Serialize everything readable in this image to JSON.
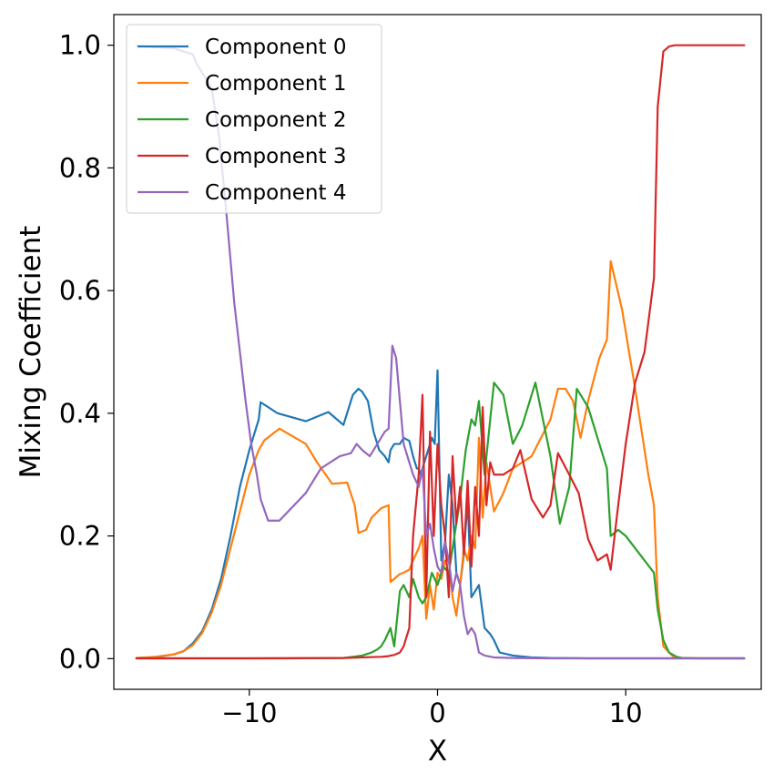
{
  "chart_data": {
    "type": "line",
    "xlabel": "X",
    "ylabel": "Mixing Coefficient",
    "xlim": [
      -17.2,
      17.2
    ],
    "ylim": [
      -0.05,
      1.05
    ],
    "xticks": [
      -10,
      0,
      10
    ],
    "yticks": [
      0.0,
      0.2,
      0.4,
      0.6,
      0.8,
      1.0
    ],
    "xtick_labels": [
      "−10",
      "0",
      "10"
    ],
    "ytick_labels": [
      "0.0",
      "0.2",
      "0.4",
      "0.6",
      "0.8",
      "1.0"
    ],
    "grid": false,
    "legend_position": "top-left",
    "series": [
      {
        "name": "Component 0",
        "color": "#1f77b4",
        "x": [
          -16,
          -15,
          -14,
          -13.5,
          -13,
          -12.5,
          -12,
          -11.5,
          -11,
          -10.5,
          -10,
          -9.5,
          -9.4,
          -8.5,
          -7,
          -5.8,
          -5,
          -4.5,
          -4.2,
          -4,
          -3.7,
          -3.4,
          -3.1,
          -2.8,
          -2.6,
          -2.5,
          -2.3,
          -2.0,
          -1.8,
          -1.5,
          -1.3,
          -1.1,
          -1.0,
          -0.9,
          -0.7,
          -0.5,
          -0.3,
          -0.15,
          0,
          0.2,
          0.4,
          0.6,
          0.8,
          1.0,
          1.2,
          1.4,
          1.6,
          1.8,
          2.0,
          2.2,
          2.5,
          2.8,
          3.0,
          3.3,
          4.0,
          5.0,
          6,
          8,
          10,
          12,
          14,
          16.3
        ],
        "y": [
          0.001,
          0.002,
          0.007,
          0.012,
          0.025,
          0.045,
          0.08,
          0.13,
          0.2,
          0.28,
          0.34,
          0.39,
          0.418,
          0.4,
          0.387,
          0.402,
          0.381,
          0.43,
          0.44,
          0.435,
          0.42,
          0.37,
          0.34,
          0.33,
          0.32,
          0.34,
          0.35,
          0.35,
          0.36,
          0.355,
          0.33,
          0.31,
          0.31,
          0.3,
          0.32,
          0.34,
          0.36,
          0.35,
          0.47,
          0.16,
          0.19,
          0.3,
          0.25,
          0.14,
          0.12,
          0.17,
          0.26,
          0.1,
          0.11,
          0.12,
          0.05,
          0.04,
          0.03,
          0.01,
          0.005,
          0.002,
          0.001,
          0.0005,
          0.0005,
          0.0005,
          0.0005,
          0.0005
        ]
      },
      {
        "name": "Component 1",
        "color": "#ff7f0e",
        "x": [
          -16,
          -15,
          -14,
          -13.5,
          -13,
          -12.5,
          -12,
          -11.5,
          -11,
          -10.5,
          -10,
          -9.5,
          -9.2,
          -8.4,
          -7,
          -6.4,
          -5.6,
          -4.8,
          -4.4,
          -4.2,
          -3.8,
          -3.5,
          -3.0,
          -2.6,
          -2.5,
          -2.3,
          -2.0,
          -1.8,
          -1.5,
          -1.3,
          -1.0,
          -0.8,
          -0.6,
          -0.4,
          -0.2,
          0,
          0.2,
          0.4,
          0.6,
          0.8,
          1.0,
          1.2,
          1.4,
          1.6,
          1.8,
          2.0,
          2.2,
          2.4,
          2.6,
          3.0,
          3.5,
          4.0,
          5.0,
          5.5,
          6.0,
          6.4,
          6.8,
          7.2,
          7.6,
          8.0,
          8.6,
          9.0,
          9.2,
          9.8,
          10.5,
          11.2,
          11.5,
          11.7,
          12.0,
          12.5,
          13,
          14,
          16.3
        ],
        "y": [
          0.001,
          0.003,
          0.007,
          0.012,
          0.022,
          0.042,
          0.075,
          0.12,
          0.18,
          0.24,
          0.3,
          0.34,
          0.356,
          0.375,
          0.35,
          0.32,
          0.285,
          0.287,
          0.25,
          0.205,
          0.21,
          0.23,
          0.245,
          0.25,
          0.125,
          0.13,
          0.138,
          0.14,
          0.145,
          0.16,
          0.18,
          0.2,
          0.065,
          0.12,
          0.08,
          0.14,
          0.13,
          0.16,
          0.16,
          0.1,
          0.07,
          0.12,
          0.18,
          0.16,
          0.2,
          0.18,
          0.36,
          0.23,
          0.32,
          0.24,
          0.27,
          0.31,
          0.33,
          0.36,
          0.39,
          0.44,
          0.44,
          0.42,
          0.36,
          0.42,
          0.49,
          0.52,
          0.648,
          0.57,
          0.44,
          0.3,
          0.25,
          0.1,
          0.02,
          0.004,
          0.001,
          0.0005,
          0.0005
        ]
      },
      {
        "name": "Component 2",
        "color": "#2ca02c",
        "x": [
          -16,
          -12,
          -8,
          -5,
          -4.5,
          -4,
          -3.5,
          -3.2,
          -3.0,
          -2.8,
          -2.5,
          -2.3,
          -2.0,
          -1.8,
          -1.5,
          -1.3,
          -1.0,
          -0.8,
          -0.6,
          -0.3,
          0,
          0.3,
          0.6,
          0.9,
          1.2,
          1.5,
          1.8,
          2.0,
          2.2,
          2.5,
          3.0,
          3.5,
          4.0,
          4.5,
          5.2,
          6.0,
          6.5,
          7.0,
          7.4,
          8.0,
          8.5,
          9.0,
          9.2,
          9.6,
          10.0,
          10.5,
          11,
          11.5,
          11.7,
          12.0,
          12.3,
          12.7,
          13,
          14,
          16.3
        ],
        "y": [
          0.0005,
          0.0005,
          0.0005,
          0.001,
          0.003,
          0.005,
          0.01,
          0.015,
          0.02,
          0.03,
          0.05,
          0.02,
          0.11,
          0.12,
          0.1,
          0.13,
          0.1,
          0.09,
          0.1,
          0.14,
          0.12,
          0.15,
          0.14,
          0.2,
          0.26,
          0.34,
          0.39,
          0.38,
          0.42,
          0.3,
          0.45,
          0.43,
          0.35,
          0.38,
          0.45,
          0.33,
          0.22,
          0.28,
          0.44,
          0.41,
          0.36,
          0.31,
          0.2,
          0.21,
          0.2,
          0.18,
          0.16,
          0.14,
          0.08,
          0.03,
          0.01,
          0.003,
          0.001,
          0.0005,
          0.0005
        ]
      },
      {
        "name": "Component 3",
        "color": "#d62728",
        "x": [
          -16,
          -10,
          -5,
          -3,
          -2.6,
          -2.5,
          -2.3,
          -2.0,
          -1.8,
          -1.5,
          -1.3,
          -1.0,
          -0.8,
          -0.6,
          -0.4,
          -0.2,
          0,
          0.2,
          0.4,
          0.6,
          0.8,
          1.0,
          1.2,
          1.4,
          1.6,
          1.8,
          2.0,
          2.2,
          2.4,
          2.6,
          2.8,
          3.0,
          3.5,
          4.0,
          4.4,
          5.0,
          5.6,
          6.0,
          6.4,
          7.0,
          7.5,
          8.0,
          8.5,
          9.0,
          9.2,
          9.6,
          10.0,
          10.5,
          11.0,
          11.5,
          11.7,
          12.0,
          12.3,
          12.6,
          13,
          14,
          16.3
        ],
        "y": [
          0.0005,
          0.0005,
          0.001,
          0.003,
          0.004,
          0.005,
          0.006,
          0.01,
          0.02,
          0.05,
          0.2,
          0.3,
          0.43,
          0.1,
          0.37,
          0.2,
          0.35,
          0.25,
          0.2,
          0.1,
          0.33,
          0.22,
          0.28,
          0.17,
          0.29,
          0.15,
          0.28,
          0.2,
          0.41,
          0.25,
          0.32,
          0.3,
          0.3,
          0.31,
          0.34,
          0.26,
          0.23,
          0.25,
          0.335,
          0.3,
          0.27,
          0.195,
          0.16,
          0.17,
          0.145,
          0.25,
          0.35,
          0.45,
          0.5,
          0.62,
          0.9,
          0.99,
          0.998,
          1.0,
          1.0,
          1.0,
          1.0
        ]
      },
      {
        "name": "Component 4",
        "color": "#9467bd",
        "x": [
          -16,
          -14,
          -13,
          -12.8,
          -12.5,
          -12.2,
          -12,
          -11.6,
          -11.2,
          -10.8,
          -10.5,
          -10.2,
          -9.9,
          -9.6,
          -9.4,
          -9.0,
          -8.4,
          -7.0,
          -6.2,
          -5.2,
          -4.6,
          -4.3,
          -4.0,
          -3.6,
          -3.2,
          -2.8,
          -2.6,
          -2.4,
          -2.2,
          -2.0,
          -1.8,
          -1.5,
          -1.3,
          -1.0,
          -0.8,
          -0.6,
          -0.4,
          -0.2,
          0,
          0.2,
          0.4,
          0.6,
          0.8,
          1.0,
          1.2,
          1.4,
          1.6,
          1.8,
          2.0,
          2.2,
          2.5,
          3,
          4,
          6,
          8,
          10,
          12,
          14,
          16.3
        ],
        "y": [
          0.999,
          0.995,
          0.985,
          0.97,
          0.955,
          0.94,
          0.93,
          0.85,
          0.72,
          0.58,
          0.5,
          0.42,
          0.35,
          0.3,
          0.26,
          0.225,
          0.225,
          0.27,
          0.31,
          0.33,
          0.335,
          0.35,
          0.34,
          0.33,
          0.35,
          0.37,
          0.375,
          0.51,
          0.49,
          0.42,
          0.35,
          0.32,
          0.3,
          0.28,
          0.31,
          0.2,
          0.22,
          0.18,
          0.15,
          0.14,
          0.19,
          0.16,
          0.11,
          0.14,
          0.12,
          0.07,
          0.04,
          0.05,
          0.04,
          0.01,
          0.005,
          0.002,
          0.001,
          0.0005,
          0.0005,
          0.0005,
          0.0005,
          0.0005,
          0.0005
        ]
      }
    ]
  }
}
